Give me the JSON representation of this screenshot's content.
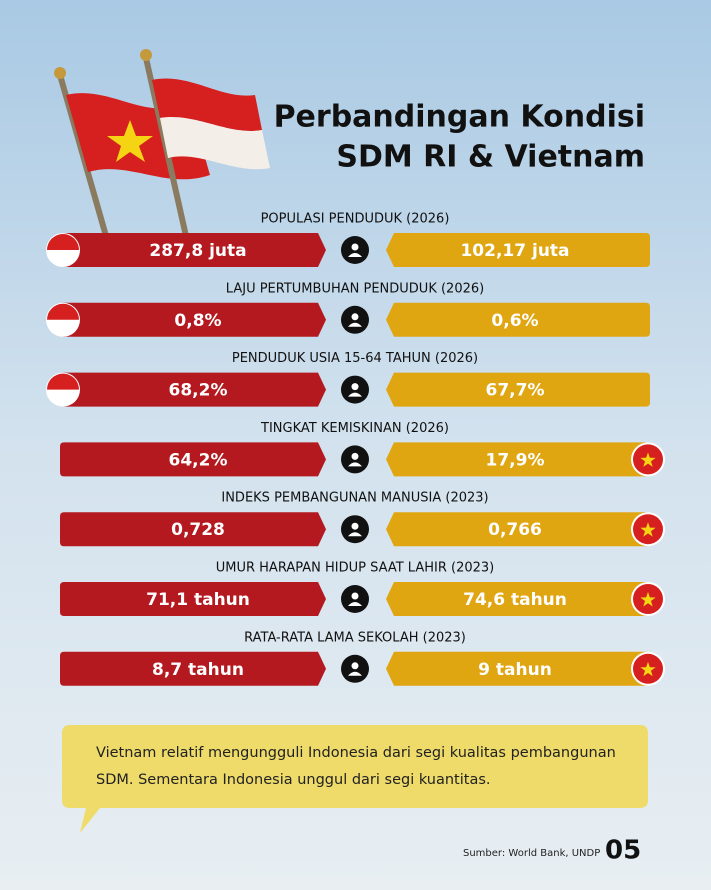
{
  "header": {
    "title_lines": [
      "Perbandingan Kondisi",
      "SDM RI & Vietnam"
    ]
  },
  "rows": [
    {
      "label": "POPULASI PENDUDUK (2026)",
      "indonesia": "287,8 juta",
      "vietnam": "102,17 juta",
      "flag": "left"
    },
    {
      "label": "LAJU PERTUMBUHAN PENDUDUK (2026)",
      "indonesia": "0,8%",
      "vietnam": "0,6%",
      "flag": "left"
    },
    {
      "label": "PENDUDUK USIA 15-64 TAHUN (2026)",
      "indonesia": "68,2%",
      "vietnam": "67,7%",
      "flag": "left"
    },
    {
      "label": "TINGKAT KEMISKINAN (2026)",
      "indonesia": "64,2%",
      "vietnam": "17,9%",
      "flag": "right"
    },
    {
      "label": "INDEKS PEMBANGUNAN MANUSIA (2023)",
      "indonesia": "0,728",
      "vietnam": "0,766",
      "flag": "right"
    },
    {
      "label": "UMUR HARAPAN HIDUP SAAT LAHIR (2023)",
      "indonesia": "71,1 tahun",
      "vietnam": "74,6 tahun",
      "flag": "right"
    },
    {
      "label": "RATA-RATA LAMA SEKOLAH (2023)",
      "indonesia": "8,7 tahun",
      "vietnam": "9 tahun",
      "flag": "right"
    }
  ],
  "note": "Vietnam relatif mengungguli Indonesia dari segi kualitas pembangunan SDM. Sementara Indonesia unggul dari segi kuantitas.",
  "footer": {
    "source": "Sumber: World Bank, UNDP",
    "page": "05"
  }
}
